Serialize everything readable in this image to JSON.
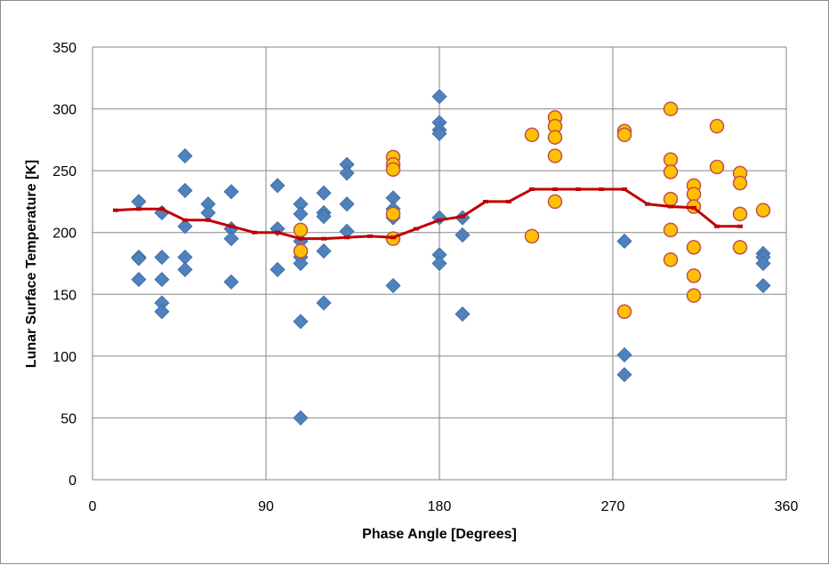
{
  "chart_data": {
    "type": "scatter",
    "title": "",
    "xlabel": "Phase Angle [Degrees]",
    "ylabel": "Lunar Surface Temperature [K]",
    "xlim": [
      0,
      360
    ],
    "ylim": [
      0,
      350
    ],
    "xticks": [
      0,
      90,
      180,
      270,
      360
    ],
    "yticks": [
      0,
      50,
      100,
      150,
      200,
      250,
      300,
      350
    ],
    "grid": true,
    "legend": "none",
    "series": [
      {
        "marker": "diamond",
        "color": "#4f81bd",
        "points": [
          [
            24,
            225
          ],
          [
            24,
            180
          ],
          [
            24,
            179
          ],
          [
            24,
            162
          ],
          [
            36,
            216
          ],
          [
            36,
            180
          ],
          [
            36,
            162
          ],
          [
            36,
            143
          ],
          [
            36,
            136
          ],
          [
            48,
            262
          ],
          [
            48,
            234
          ],
          [
            48,
            205
          ],
          [
            48,
            180
          ],
          [
            48,
            170
          ],
          [
            60,
            223
          ],
          [
            60,
            216
          ],
          [
            72,
            233
          ],
          [
            72,
            203
          ],
          [
            72,
            195
          ],
          [
            72,
            160
          ],
          [
            96,
            238
          ],
          [
            96,
            203
          ],
          [
            96,
            170
          ],
          [
            108,
            223
          ],
          [
            108,
            215
          ],
          [
            108,
            193
          ],
          [
            108,
            180
          ],
          [
            108,
            175
          ],
          [
            108,
            128
          ],
          [
            108,
            50
          ],
          [
            120,
            232
          ],
          [
            120,
            216
          ],
          [
            120,
            213
          ],
          [
            120,
            185
          ],
          [
            120,
            143
          ],
          [
            132,
            255
          ],
          [
            132,
            248
          ],
          [
            132,
            223
          ],
          [
            132,
            201
          ],
          [
            156,
            228
          ],
          [
            156,
            219
          ],
          [
            156,
            212
          ],
          [
            156,
            157
          ],
          [
            180,
            310
          ],
          [
            180,
            289
          ],
          [
            180,
            283
          ],
          [
            180,
            280
          ],
          [
            180,
            212
          ],
          [
            180,
            182
          ],
          [
            180,
            175
          ],
          [
            192,
            212
          ],
          [
            192,
            198
          ],
          [
            192,
            134
          ],
          [
            276,
            193
          ],
          [
            276,
            101
          ],
          [
            276,
            85
          ],
          [
            348,
            183
          ],
          [
            348,
            180
          ],
          [
            348,
            175
          ],
          [
            348,
            157
          ]
        ]
      },
      {
        "marker": "circle",
        "color": "#ffc000",
        "stroke": "#c0504d",
        "points": [
          [
            108,
            202
          ],
          [
            108,
            185
          ],
          [
            156,
            261
          ],
          [
            156,
            255
          ],
          [
            156,
            251
          ],
          [
            156,
            215
          ],
          [
            156,
            195
          ],
          [
            228,
            279
          ],
          [
            228,
            197
          ],
          [
            240,
            293
          ],
          [
            240,
            286
          ],
          [
            240,
            277
          ],
          [
            240,
            262
          ],
          [
            240,
            225
          ],
          [
            276,
            282
          ],
          [
            276,
            279
          ],
          [
            276,
            136
          ],
          [
            300,
            300
          ],
          [
            300,
            259
          ],
          [
            300,
            249
          ],
          [
            300,
            227
          ],
          [
            300,
            202
          ],
          [
            300,
            178
          ],
          [
            312,
            238
          ],
          [
            312,
            231
          ],
          [
            312,
            221
          ],
          [
            312,
            188
          ],
          [
            312,
            165
          ],
          [
            312,
            149
          ],
          [
            324,
            286
          ],
          [
            324,
            253
          ],
          [
            336,
            248
          ],
          [
            336,
            240
          ],
          [
            336,
            215
          ],
          [
            336,
            188
          ],
          [
            348,
            218
          ]
        ]
      },
      {
        "marker": "line",
        "color": "#c00000",
        "points": [
          [
            12,
            218
          ],
          [
            24,
            219
          ],
          [
            36,
            219
          ],
          [
            48,
            210
          ],
          [
            60,
            210
          ],
          [
            72,
            205
          ],
          [
            84,
            200
          ],
          [
            96,
            200
          ],
          [
            108,
            195
          ],
          [
            120,
            195
          ],
          [
            132,
            196
          ],
          [
            144,
            197
          ],
          [
            156,
            196
          ],
          [
            168,
            203
          ],
          [
            180,
            210
          ],
          [
            192,
            213
          ],
          [
            204,
            225
          ],
          [
            216,
            225
          ],
          [
            228,
            235
          ],
          [
            240,
            235
          ],
          [
            252,
            235
          ],
          [
            264,
            235
          ],
          [
            276,
            235
          ],
          [
            288,
            223
          ],
          [
            300,
            221
          ],
          [
            312,
            220
          ],
          [
            324,
            205
          ],
          [
            336,
            205
          ]
        ]
      }
    ]
  }
}
